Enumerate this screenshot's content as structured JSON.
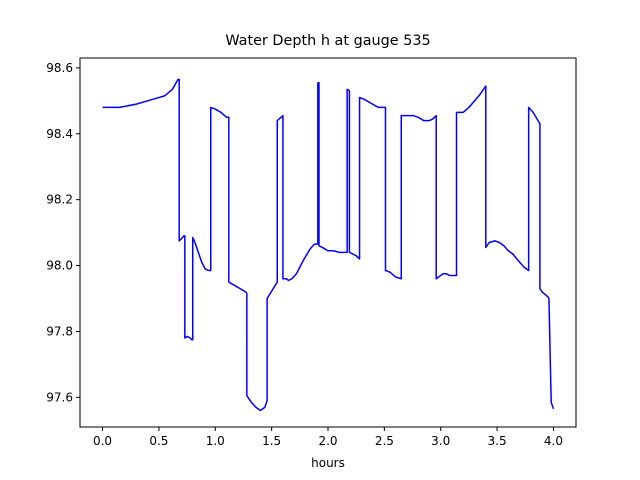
{
  "chart_data": {
    "type": "line",
    "title": "Water Depth h at gauge 535",
    "xlabel": "hours",
    "ylabel": "",
    "xlim": [
      -0.2,
      4.2
    ],
    "ylim": [
      97.51,
      98.63
    ],
    "xticks": [
      0.0,
      0.5,
      1.0,
      1.5,
      2.0,
      2.5,
      3.0,
      3.5,
      4.0
    ],
    "xtick_labels": [
      "0.0",
      "0.5",
      "1.0",
      "1.5",
      "2.0",
      "2.5",
      "3.0",
      "3.5",
      "4.0"
    ],
    "yticks": [
      97.6,
      97.8,
      98.0,
      98.2,
      98.4,
      98.6
    ],
    "ytick_labels": [
      "97.6",
      "97.8",
      "98.0",
      "98.2",
      "98.4",
      "98.6"
    ],
    "grid": false,
    "series": [
      {
        "color": "#0000ff",
        "x": [
          0.0,
          0.15,
          0.3,
          0.45,
          0.55,
          0.62,
          0.67,
          0.68,
          0.68,
          0.71,
          0.72,
          0.73,
          0.73,
          0.75,
          0.78,
          0.79,
          0.8,
          0.8,
          0.82,
          0.85,
          0.88,
          0.91,
          0.94,
          0.96,
          0.96,
          1.0,
          1.05,
          1.1,
          1.12,
          1.12,
          1.17,
          1.22,
          1.27,
          1.28,
          1.28,
          1.32,
          1.36,
          1.4,
          1.44,
          1.46,
          1.46,
          1.55,
          1.55,
          1.6,
          1.6,
          1.63,
          1.65,
          1.68,
          1.72,
          1.78,
          1.84,
          1.88,
          1.9,
          1.91,
          1.91,
          1.92,
          1.92,
          1.95,
          2.0,
          2.05,
          2.1,
          2.17,
          2.17,
          2.19,
          2.19,
          2.25,
          2.28,
          2.28,
          2.32,
          2.37,
          2.42,
          2.45,
          2.51,
          2.51,
          2.55,
          2.6,
          2.65,
          2.65,
          2.7,
          2.76,
          2.8,
          2.85,
          2.9,
          2.93,
          2.96,
          2.96,
          3.0,
          3.02,
          3.05,
          3.08,
          3.1,
          3.14,
          3.14,
          3.2,
          3.25,
          3.3,
          3.35,
          3.4,
          3.4,
          3.43,
          3.48,
          3.52,
          3.56,
          3.6,
          3.64,
          3.7,
          3.74,
          3.78,
          3.78,
          3.82,
          3.88,
          3.88,
          3.9,
          3.95,
          3.96,
          3.98,
          4.0
        ],
        "y": [
          98.48,
          98.48,
          98.49,
          98.505,
          98.515,
          98.535,
          98.565,
          98.565,
          98.075,
          98.085,
          98.09,
          98.09,
          97.78,
          97.785,
          97.78,
          97.775,
          97.775,
          98.085,
          98.07,
          98.04,
          98.01,
          97.99,
          97.985,
          97.985,
          98.48,
          98.475,
          98.465,
          98.45,
          98.45,
          97.95,
          97.94,
          97.93,
          97.92,
          97.915,
          97.605,
          97.585,
          97.57,
          97.56,
          97.57,
          97.59,
          97.9,
          97.95,
          98.44,
          98.455,
          97.96,
          97.96,
          97.955,
          97.96,
          97.975,
          98.015,
          98.05,
          98.065,
          98.065,
          98.065,
          98.555,
          98.555,
          98.06,
          98.055,
          98.045,
          98.045,
          98.04,
          98.04,
          98.535,
          98.53,
          98.04,
          98.03,
          98.02,
          98.51,
          98.505,
          98.495,
          98.485,
          98.48,
          98.48,
          97.985,
          97.98,
          97.965,
          97.96,
          98.455,
          98.455,
          98.455,
          98.45,
          98.44,
          98.44,
          98.445,
          98.455,
          97.96,
          97.97,
          97.975,
          97.975,
          97.97,
          97.97,
          97.97,
          98.465,
          98.465,
          98.48,
          98.5,
          98.52,
          98.545,
          98.055,
          98.07,
          98.075,
          98.07,
          98.06,
          98.045,
          98.035,
          98.01,
          97.995,
          97.985,
          98.48,
          98.465,
          98.43,
          97.93,
          97.92,
          97.905,
          97.9,
          97.585,
          97.565
        ]
      }
    ]
  }
}
